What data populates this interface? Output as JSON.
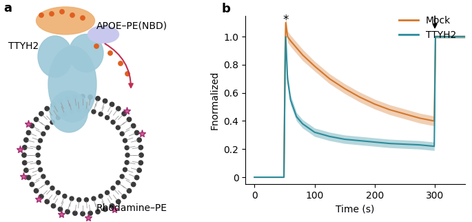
{
  "chart_data": {
    "type": "line",
    "panel_label": "b",
    "xlabel": "Time (s)",
    "ylabel": "Fnormalized",
    "x": [
      0,
      49,
      51,
      52,
      55,
      60,
      70,
      80,
      100,
      125,
      150,
      175,
      200,
      225,
      250,
      275,
      299,
      301,
      310,
      350
    ],
    "series": [
      {
        "name": "Mock",
        "color": "#d4772a",
        "values": [
          0,
          0,
          0.9,
          1.1,
          1.0,
          0.97,
          0.92,
          0.87,
          0.79,
          0.7,
          0.63,
          0.57,
          0.52,
          0.48,
          0.45,
          0.42,
          0.4,
          1.0,
          1.0,
          1.0
        ],
        "error": [
          0,
          0,
          0.05,
          0.05,
          0.04,
          0.04,
          0.04,
          0.04,
          0.035,
          0.035,
          0.035,
          0.035,
          0.035,
          0.035,
          0.035,
          0.035,
          0.035,
          0.01,
          0.01,
          0.01
        ]
      },
      {
        "name": "TTYH2",
        "color": "#2b8c9c",
        "values": [
          0,
          0,
          0.8,
          1.0,
          0.7,
          0.55,
          0.43,
          0.38,
          0.32,
          0.29,
          0.27,
          0.26,
          0.25,
          0.24,
          0.235,
          0.23,
          0.22,
          1.0,
          1.0,
          1.0
        ],
        "error": [
          0,
          0,
          0.05,
          0.05,
          0.04,
          0.035,
          0.03,
          0.03,
          0.03,
          0.03,
          0.03,
          0.03,
          0.03,
          0.03,
          0.03,
          0.03,
          0.03,
          0.01,
          0.01,
          0.01
        ]
      }
    ],
    "xlim": [
      -15,
      350
    ],
    "xticks": [
      0,
      100,
      200,
      300
    ],
    "ylim": [
      -0.05,
      1.15
    ],
    "yticks": [
      0,
      0.2,
      0.4,
      0.6,
      0.8,
      1.0
    ],
    "legend": "upper right",
    "grid": false,
    "annotations": [
      {
        "text": "*",
        "x": 52,
        "y": 1.12
      }
    ],
    "arrows": [
      {
        "x": 300,
        "y": 1.1
      }
    ]
  },
  "diagram": {
    "panel_label": "a",
    "labels": {
      "protein": "TTYH2",
      "donor": "APOE–PE(NBD)",
      "acceptor": "Rhodamine–PE"
    }
  }
}
